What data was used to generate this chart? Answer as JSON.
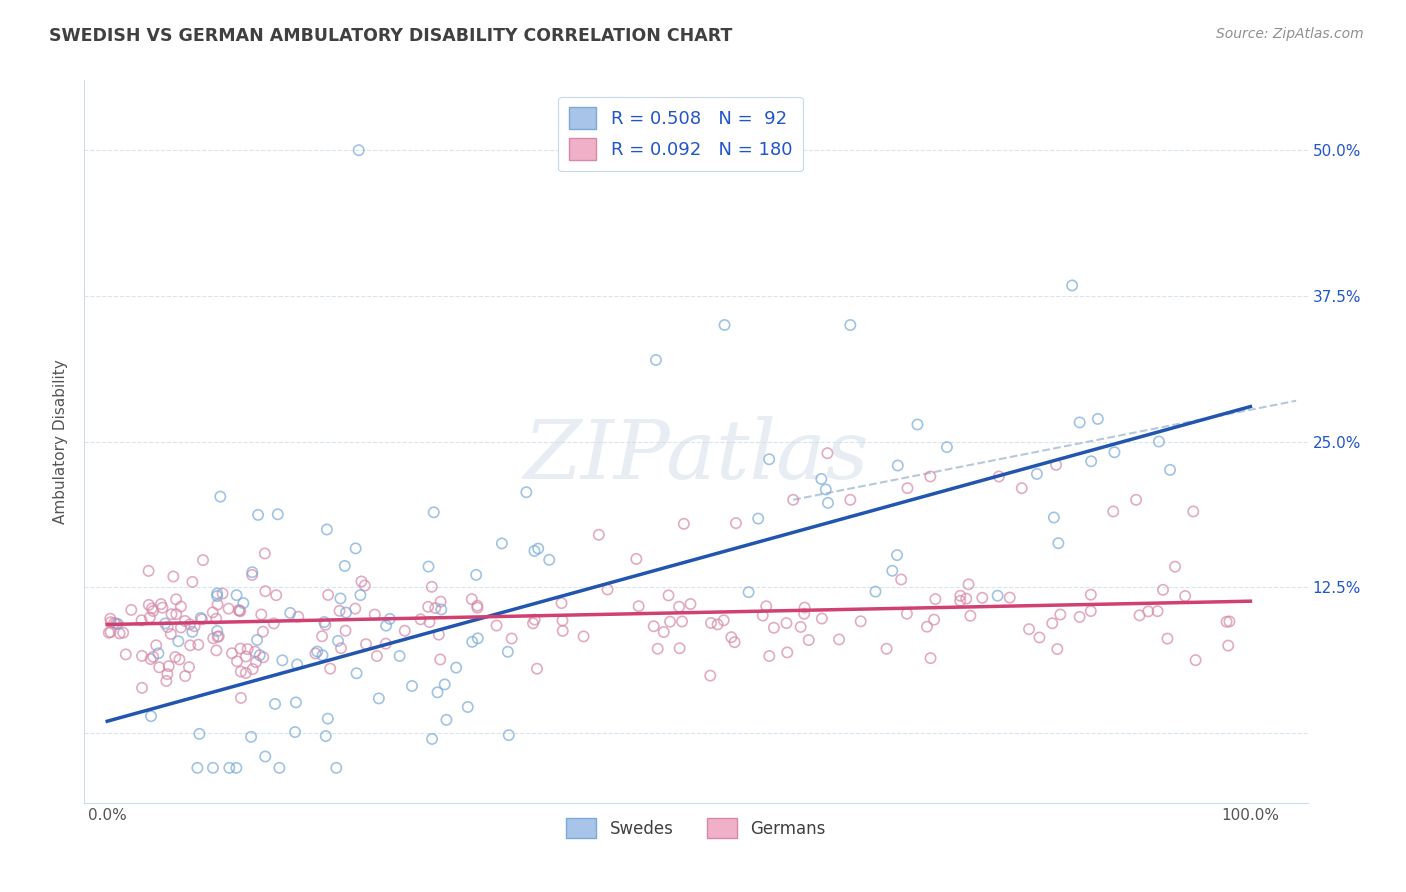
{
  "title": "SWEDISH VS GERMAN AMBULATORY DISABILITY CORRELATION CHART",
  "source": "Source: ZipAtlas.com",
  "ylabel": "Ambulatory Disability",
  "swedes_R": 0.508,
  "swedes_N": 92,
  "germans_R": 0.092,
  "germans_N": 180,
  "swede_color": "#a8c4e8",
  "swede_edge_color": "#7aaad8",
  "german_color": "#f0b0c8",
  "german_edge_color": "#d888a8",
  "swede_line_color": "#2255b0",
  "german_line_color": "#d04070",
  "dashed_line_color": "#b8c8d8",
  "legend_color_blue": "#2255cc",
  "background_color": "#ffffff",
  "grid_color": "#d8e4ee",
  "title_color": "#404040",
  "source_color": "#909090",
  "watermark_color": "#d0dce8",
  "xlim": [
    -0.02,
    1.05
  ],
  "ylim": [
    -0.06,
    0.56
  ]
}
